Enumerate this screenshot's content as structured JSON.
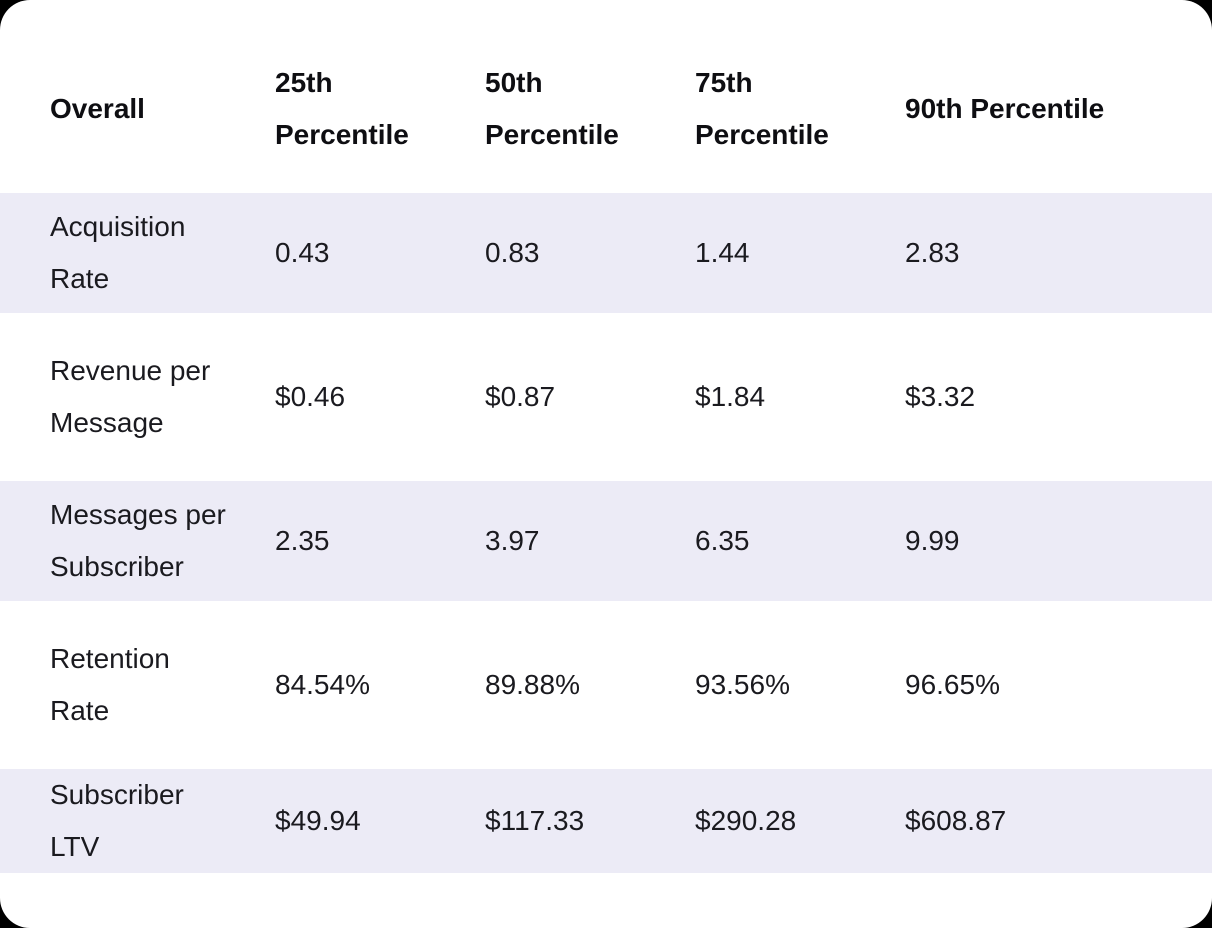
{
  "table": {
    "header": [
      "Overall",
      "25th Percentile",
      "50th Percentile",
      "75th Percentile",
      "90th Percentile"
    ],
    "rows": [
      {
        "label": "Acquisition Rate",
        "values": [
          "0.43",
          "0.83",
          "1.44",
          "2.83"
        ]
      },
      {
        "label": "Revenue per Message",
        "values": [
          "$0.46",
          "$0.87",
          "$1.84",
          "$3.32"
        ]
      },
      {
        "label": "Messages per Subscriber",
        "values": [
          "2.35",
          "3.97",
          "6.35",
          "9.99"
        ]
      },
      {
        "label": "Retention Rate",
        "values": [
          "84.54%",
          "89.88%",
          "93.56%",
          "96.65%"
        ]
      },
      {
        "label": "Subscriber LTV",
        "values": [
          "$49.94",
          "$117.33",
          "$290.28",
          "$608.87"
        ]
      }
    ]
  },
  "colors": {
    "page_bg": "#000000",
    "card_bg": "#FFFFFF",
    "row_stripe": "#ECEBF6",
    "header_text": "#0E0E12",
    "body_text": "#1A1A1F"
  }
}
